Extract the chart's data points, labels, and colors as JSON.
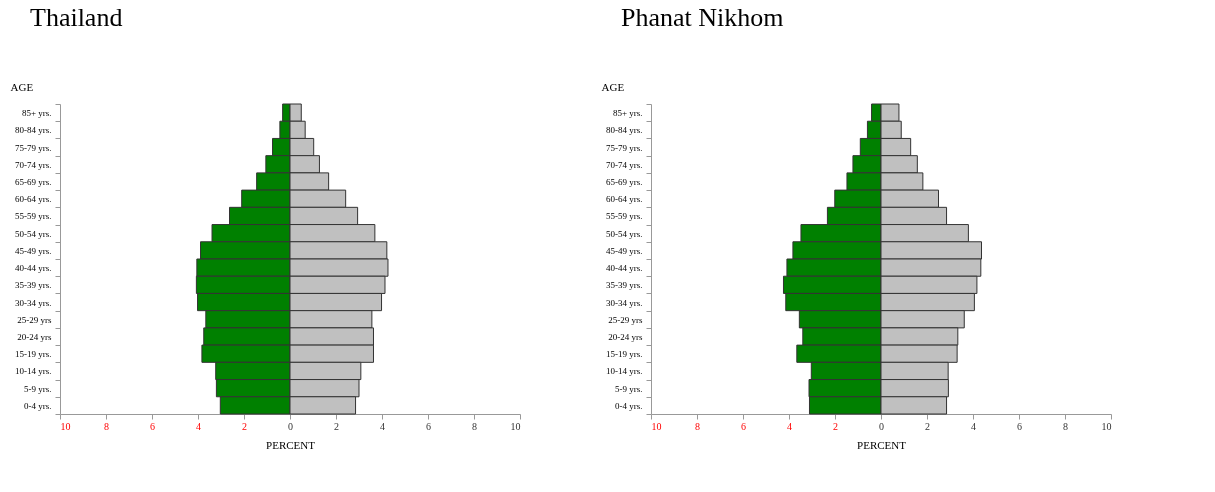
{
  "chart_data": [
    {
      "type": "bar",
      "orientation": "horizontal",
      "stacked": true,
      "title": "Thailand",
      "xlabel": "PERCENT",
      "ylabel": "AGE",
      "grid": false,
      "categories": [
        "85+ yrs.",
        "80-84 yrs.",
        "75-79 yrs.",
        "70-74 yrs.",
        "65-69 yrs.",
        "60-64 yrs.",
        "55-59 yrs.",
        "50-54 yrs.",
        "45-49 yrs.",
        "40-44 yrs.",
        "35-39 yrs.",
        "30-34 yrs.",
        "25-29 yrs",
        "20-24 yrs",
        "15-19 yrs.",
        "10-14 yrs.",
        "5-9 yrs.",
        "0-4 yrs."
      ],
      "xlim": [
        -10,
        10
      ],
      "xticks": [
        {
          "value": -10,
          "label": "10"
        },
        {
          "value": -8,
          "label": "8"
        },
        {
          "value": -6,
          "label": "6"
        },
        {
          "value": -4,
          "label": "4"
        },
        {
          "value": -2,
          "label": "2"
        },
        0,
        2,
        4,
        6,
        8,
        10
      ],
      "series": [
        {
          "color": "#008000",
          "values": [
            -0.32,
            -0.44,
            -0.76,
            -1.05,
            -1.45,
            -2.1,
            -2.63,
            -3.39,
            -3.89,
            -4.05,
            -4.07,
            -4.02,
            -3.66,
            -3.75,
            -3.83,
            -3.23,
            -3.2,
            -3.03
          ]
        },
        {
          "color": "#c0c0c0",
          "values": [
            0.49,
            0.66,
            1.03,
            1.28,
            1.68,
            2.42,
            2.94,
            3.69,
            4.21,
            4.26,
            4.13,
            3.98,
            3.56,
            3.63,
            3.63,
            3.08,
            3.0,
            2.85
          ]
        }
      ]
    },
    {
      "type": "bar",
      "orientation": "horizontal",
      "stacked": true,
      "title": "Phanat Nikhom",
      "xlabel": "PERCENT",
      "ylabel": "AGE",
      "grid": false,
      "categories": [
        "85+ yrs.",
        "80-84 yrs.",
        "75-79 yrs.",
        "70-74 yrs.",
        "65-69 yrs.",
        "60-64 yrs.",
        "55-59 yrs.",
        "50-54 yrs.",
        "45-49 yrs.",
        "40-44 yrs.",
        "35-39 yrs.",
        "30-34 yrs.",
        "25-29 yrs",
        "20-24 yrs",
        "15-19 yrs.",
        "10-14 yrs.",
        "5-9 yrs.",
        "0-4 yrs."
      ],
      "xlim": [
        -10,
        10
      ],
      "xticks": [
        {
          "value": -10,
          "label": "10"
        },
        {
          "value": -8,
          "label": "8"
        },
        {
          "value": -6,
          "label": "6"
        },
        {
          "value": -4,
          "label": "4"
        },
        {
          "value": -2,
          "label": "2"
        },
        0,
        2,
        4,
        6,
        8,
        10
      ],
      "series": [
        {
          "color": "#008000",
          "values": [
            -0.41,
            -0.59,
            -0.9,
            -1.22,
            -1.48,
            -2.01,
            -2.33,
            -3.48,
            -3.83,
            -4.09,
            -4.24,
            -4.14,
            -3.55,
            -3.4,
            -3.66,
            -3.03,
            -3.13,
            -3.11
          ]
        },
        {
          "color": "#c0c0c0",
          "values": [
            0.78,
            0.88,
            1.29,
            1.58,
            1.82,
            2.5,
            2.85,
            3.8,
            4.37,
            4.34,
            4.17,
            4.06,
            3.62,
            3.34,
            3.31,
            2.92,
            2.93,
            2.85
          ]
        }
      ]
    }
  ]
}
